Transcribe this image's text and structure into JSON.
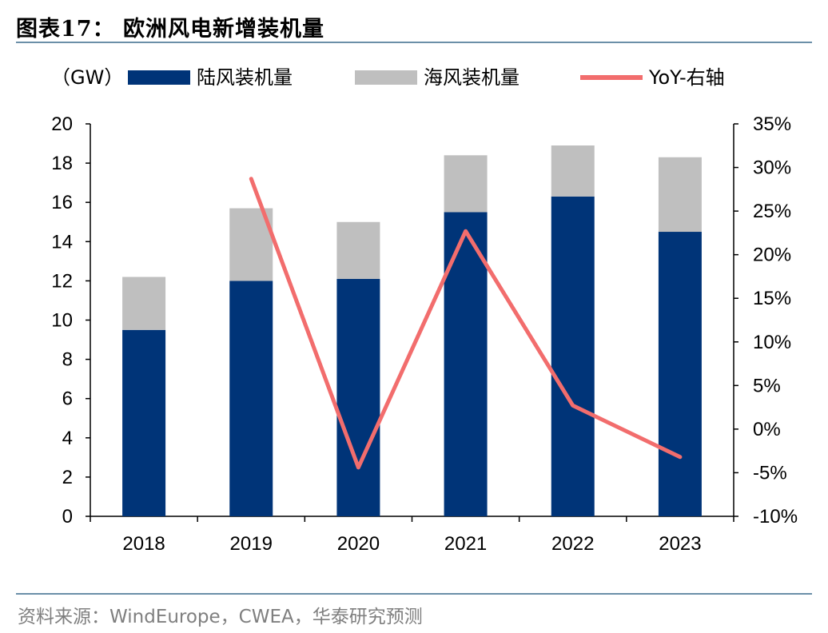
{
  "header": {
    "title": "图表17：  欧洲风电新增装机量"
  },
  "footer": {
    "source": "资料来源：WindEurope，CWEA，华泰研究预测"
  },
  "colors": {
    "onshore": "#003478",
    "offshore": "#bfbfbf",
    "yoy": "#f26d6d"
  },
  "chart_data": {
    "type": "bar",
    "stacked": true,
    "unit_label": "（GW）",
    "categories": [
      "2018",
      "2019",
      "2020",
      "2021",
      "2022",
      "2023"
    ],
    "series": [
      {
        "name": "陆风装机量",
        "type": "bar",
        "axis": "left",
        "values": [
          9.5,
          12.0,
          12.1,
          15.5,
          16.3,
          14.5
        ]
      },
      {
        "name": "海风装机量",
        "type": "bar",
        "axis": "left",
        "values": [
          2.7,
          3.7,
          2.9,
          2.9,
          2.6,
          3.8
        ]
      },
      {
        "name": "YoY-右轴",
        "type": "line",
        "axis": "right",
        "values": [
          null,
          28.7,
          -4.4,
          22.7,
          2.7,
          -3.2
        ]
      }
    ],
    "ylim": [
      0,
      20
    ],
    "yticks": [
      "0",
      "2",
      "4",
      "6",
      "8",
      "10",
      "12",
      "14",
      "16",
      "18",
      "20"
    ],
    "y2lim": [
      -10,
      35
    ],
    "y2ticks": [
      "-10%",
      "-5%",
      "0%",
      "5%",
      "10%",
      "15%",
      "20%",
      "25%",
      "30%",
      "35%"
    ],
    "grid": false,
    "legend_position": "top"
  }
}
